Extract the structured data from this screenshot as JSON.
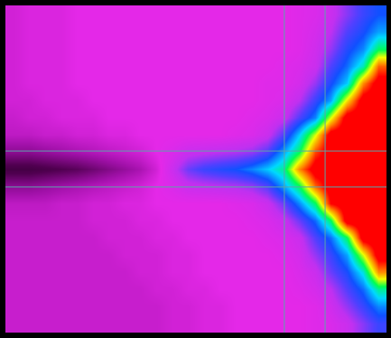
{
  "chart_data": {
    "type": "heatmap",
    "xlim": [
      -0.5,
      23.5
    ],
    "ylim": [
      18.5,
      -0.5
    ],
    "zlim": [
      0,
      100
    ],
    "tick_labels": false,
    "cells": [
      [
        23,
        24,
        24,
        24,
        25,
        25,
        25,
        25,
        25,
        25,
        25,
        25,
        25,
        25,
        25,
        25,
        25,
        25,
        26,
        27,
        30,
        36,
        42,
        46
      ],
      [
        23,
        24,
        24,
        24,
        25,
        25,
        25,
        25,
        25,
        25,
        25,
        25,
        25,
        25,
        25,
        25,
        25,
        25,
        26,
        28,
        32,
        40,
        45,
        52
      ],
      [
        23,
        24,
        24,
        24,
        25,
        25,
        25,
        25,
        25,
        25,
        25,
        25,
        25,
        25,
        25,
        25,
        25,
        25,
        26,
        29,
        35,
        44,
        50,
        65
      ],
      [
        23,
        24,
        24,
        24,
        25,
        25,
        25,
        25,
        25,
        25,
        25,
        25,
        25,
        25,
        25,
        25,
        25,
        26,
        27,
        30,
        40,
        48,
        60,
        88
      ],
      [
        23,
        24,
        24,
        24,
        25,
        25,
        25,
        25,
        25,
        25,
        25,
        25,
        25,
        25,
        25,
        25,
        26,
        26,
        28,
        35,
        45,
        55,
        85,
        100
      ],
      [
        23,
        23,
        24,
        24,
        24,
        25,
        25,
        25,
        25,
        25,
        25,
        25,
        25,
        25,
        25,
        25,
        26,
        27,
        32,
        42,
        52,
        78,
        100,
        100
      ],
      [
        22,
        23,
        23,
        24,
        24,
        24,
        25,
        25,
        25,
        25,
        25,
        25,
        25,
        25,
        25,
        26,
        27,
        30,
        40,
        50,
        75,
        100,
        100,
        100
      ],
      [
        21,
        21,
        22,
        22,
        23,
        23,
        24,
        24,
        25,
        25,
        25,
        25,
        25,
        25,
        26,
        27,
        30,
        40,
        55,
        75,
        100,
        100,
        100,
        100
      ],
      [
        16,
        16,
        17,
        18,
        19,
        20,
        21,
        22,
        23,
        25,
        27,
        30,
        31,
        32,
        33,
        35,
        40,
        52,
        65,
        90,
        100,
        100,
        100,
        100
      ],
      [
        8,
        8,
        9,
        10,
        11,
        13,
        15,
        17,
        19,
        23,
        30,
        38,
        42,
        44,
        46,
        50,
        55,
        62,
        85,
        100,
        100,
        100,
        100,
        100
      ],
      [
        16,
        16,
        17,
        18,
        19,
        20,
        21,
        22,
        23,
        25,
        27,
        30,
        31,
        32,
        33,
        35,
        40,
        52,
        65,
        88,
        100,
        100,
        100,
        100
      ],
      [
        21,
        21,
        21,
        22,
        22,
        23,
        23,
        24,
        24,
        25,
        25,
        25,
        25,
        25,
        26,
        27,
        30,
        38,
        50,
        65,
        95,
        100,
        100,
        100
      ],
      [
        22,
        22,
        22,
        22,
        22,
        23,
        23,
        23,
        24,
        24,
        25,
        25,
        25,
        25,
        25,
        26,
        27,
        30,
        38,
        48,
        65,
        100,
        100,
        100
      ],
      [
        22,
        22,
        22,
        22,
        22,
        22,
        23,
        23,
        23,
        24,
        24,
        25,
        25,
        25,
        25,
        25,
        26,
        27,
        30,
        40,
        48,
        65,
        100,
        100
      ],
      [
        22,
        22,
        22,
        22,
        22,
        22,
        22,
        23,
        23,
        23,
        24,
        24,
        25,
        25,
        25,
        25,
        25,
        26,
        28,
        35,
        42,
        52,
        75,
        100
      ],
      [
        22,
        22,
        22,
        22,
        22,
        22,
        22,
        22,
        23,
        23,
        24,
        24,
        25,
        25,
        25,
        25,
        25,
        25,
        27,
        30,
        38,
        45,
        58,
        85
      ],
      [
        22,
        22,
        22,
        22,
        22,
        22,
        22,
        22,
        22,
        23,
        23,
        24,
        24,
        25,
        25,
        25,
        25,
        25,
        26,
        28,
        32,
        40,
        48,
        62
      ],
      [
        22,
        22,
        22,
        22,
        22,
        22,
        22,
        22,
        22,
        22,
        23,
        23,
        24,
        24,
        25,
        25,
        25,
        25,
        25,
        26,
        29,
        35,
        42,
        50
      ],
      [
        22,
        22,
        22,
        22,
        22,
        22,
        22,
        22,
        22,
        22,
        23,
        23,
        24,
        24,
        25,
        25,
        25,
        25,
        25,
        26,
        27,
        30,
        36,
        42
      ]
    ]
  }
}
